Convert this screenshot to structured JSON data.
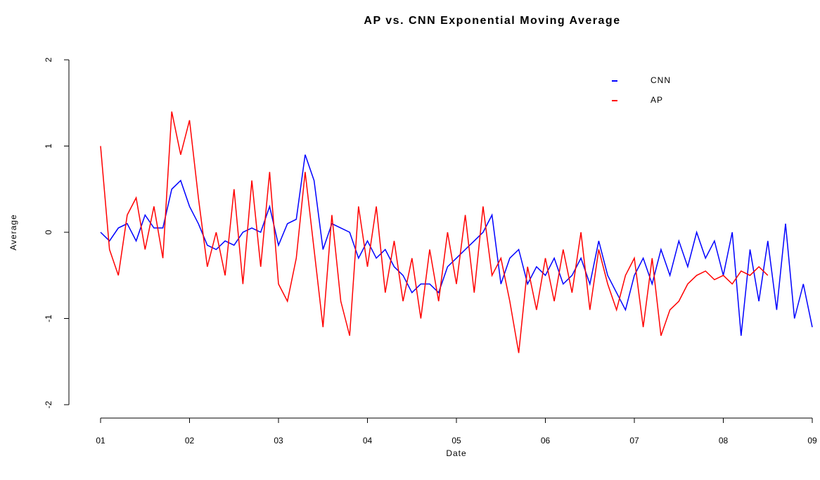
{
  "chart_data": {
    "type": "line",
    "title": "AP vs. CNN Exponential Moving Average",
    "x_label": "Date",
    "y_label": "Average",
    "xlim": [
      1,
      9
    ],
    "ylim": [
      -2,
      2
    ],
    "xticks": [
      {
        "value": 1,
        "label": "01"
      },
      {
        "value": 2,
        "label": "02"
      },
      {
        "value": 3,
        "label": "03"
      },
      {
        "value": 4,
        "label": "04"
      },
      {
        "value": 5,
        "label": "05"
      },
      {
        "value": 6,
        "label": "06"
      },
      {
        "value": 7,
        "label": "07"
      },
      {
        "value": 8,
        "label": "08"
      },
      {
        "value": 9,
        "label": "09"
      }
    ],
    "yticks": [
      -2,
      -1,
      0,
      1,
      2
    ],
    "legend": "top-right",
    "series": [
      {
        "name": "CNN",
        "color": "#0000ff",
        "x": [
          1.0,
          1.1,
          1.2,
          1.3,
          1.4,
          1.5,
          1.6,
          1.7,
          1.8,
          1.9,
          2.0,
          2.1,
          2.2,
          2.3,
          2.4,
          2.5,
          2.6,
          2.7,
          2.8,
          2.9,
          3.0,
          3.1,
          3.2,
          3.3,
          3.4,
          3.5,
          3.6,
          3.7,
          3.8,
          3.9,
          4.0,
          4.1,
          4.2,
          4.3,
          4.4,
          4.5,
          4.6,
          4.7,
          4.8,
          4.9,
          5.0,
          5.1,
          5.2,
          5.3,
          5.4,
          5.5,
          5.6,
          5.7,
          5.8,
          5.9,
          6.0,
          6.1,
          6.2,
          6.3,
          6.4,
          6.5,
          6.6,
          6.7,
          6.8,
          6.9,
          7.0,
          7.1,
          7.2,
          7.3,
          7.4,
          7.5,
          7.6,
          7.7,
          7.8,
          7.9,
          8.0,
          8.1,
          8.2,
          8.3,
          8.4,
          8.5,
          8.6,
          8.7,
          8.8,
          8.9,
          9.0
        ],
        "values": [
          0,
          -0.1,
          0.05,
          0.1,
          -0.1,
          0.2,
          0.05,
          0.05,
          0.5,
          0.6,
          0.3,
          0.1,
          -0.15,
          -0.2,
          -0.1,
          -0.15,
          0,
          0.05,
          0,
          0.3,
          -0.15,
          0.1,
          0.15,
          0.9,
          0.6,
          -0.2,
          0.1,
          0.05,
          0,
          -0.3,
          -0.1,
          -0.3,
          -0.2,
          -0.4,
          -0.5,
          -0.7,
          -0.6,
          -0.6,
          -0.7,
          -0.4,
          -0.3,
          -0.2,
          -0.1,
          0,
          0.2,
          -0.6,
          -0.3,
          -0.2,
          -0.6,
          -0.4,
          -0.5,
          -0.3,
          -0.6,
          -0.5,
          -0.3,
          -0.6,
          -0.1,
          -0.5,
          -0.7,
          -0.9,
          -0.5,
          -0.3,
          -0.6,
          -0.2,
          -0.5,
          -0.1,
          -0.4,
          0,
          -0.3,
          -0.1,
          -0.5,
          0,
          -1.2,
          -0.2,
          -0.8,
          -0.1,
          -0.9,
          0.1,
          -1.0,
          -0.6,
          -1.1
        ]
      },
      {
        "name": "AP",
        "color": "#ff0000",
        "x": [
          1.0,
          1.1,
          1.2,
          1.3,
          1.4,
          1.5,
          1.6,
          1.7,
          1.8,
          1.9,
          2.0,
          2.1,
          2.2,
          2.3,
          2.4,
          2.5,
          2.6,
          2.7,
          2.8,
          2.9,
          3.0,
          3.1,
          3.2,
          3.3,
          3.4,
          3.5,
          3.6,
          3.7,
          3.8,
          3.9,
          4.0,
          4.1,
          4.2,
          4.3,
          4.4,
          4.5,
          4.6,
          4.7,
          4.8,
          4.9,
          5.0,
          5.1,
          5.2,
          5.3,
          5.4,
          5.5,
          5.6,
          5.7,
          5.8,
          5.9,
          6.0,
          6.1,
          6.2,
          6.3,
          6.4,
          6.5,
          6.6,
          6.7,
          6.8,
          6.9,
          7.0,
          7.1,
          7.2,
          7.3,
          7.4,
          7.5,
          7.6,
          7.7,
          7.8,
          7.9,
          8.0,
          8.1,
          8.2,
          8.3,
          8.4,
          8.5
        ],
        "values": [
          1.0,
          -0.2,
          -0.5,
          0.2,
          0.4,
          -0.2,
          0.3,
          -0.3,
          1.4,
          0.9,
          1.3,
          0.4,
          -0.4,
          0,
          -0.5,
          0.5,
          -0.6,
          0.6,
          -0.4,
          0.7,
          -0.6,
          -0.8,
          -0.3,
          0.7,
          -0.2,
          -1.1,
          0.2,
          -0.8,
          -1.2,
          0.3,
          -0.4,
          0.3,
          -0.7,
          -0.1,
          -0.8,
          -0.3,
          -1.0,
          -0.2,
          -0.8,
          0,
          -0.6,
          0.2,
          -0.7,
          0.3,
          -0.5,
          -0.3,
          -0.8,
          -1.4,
          -0.4,
          -0.9,
          -0.3,
          -0.8,
          -0.2,
          -0.7,
          0,
          -0.9,
          -0.2,
          -0.6,
          -0.9,
          -0.5,
          -0.3,
          -1.1,
          -0.3,
          -1.2,
          -0.9,
          -0.8,
          -0.6,
          -0.5,
          -0.45,
          -0.55,
          -0.5,
          -0.6,
          -0.45,
          -0.5,
          -0.4,
          -0.5
        ]
      }
    ]
  }
}
